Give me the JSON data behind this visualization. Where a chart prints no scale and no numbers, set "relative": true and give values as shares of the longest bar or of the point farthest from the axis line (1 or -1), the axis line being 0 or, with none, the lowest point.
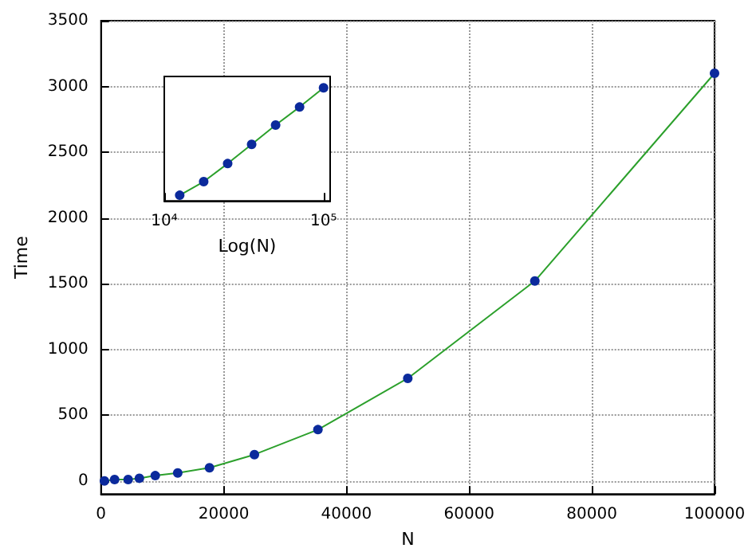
{
  "chart_data": [
    {
      "type": "line",
      "xlabel": "N",
      "ylabel": "Time",
      "xlim": [
        0,
        100000
      ],
      "xticks": [
        0,
        20000,
        40000,
        60000,
        80000,
        100000
      ],
      "ylim": [
        -100,
        3500
      ],
      "yticks": [
        0,
        500,
        1000,
        1500,
        2000,
        2500,
        3000,
        3500
      ],
      "grid": true,
      "marker": "circle",
      "line_style": "solid",
      "series": [
        {
          "color": "#2ca02c",
          "x": [
            550,
            2210,
            4419,
            6250,
            8839,
            12500,
            17678,
            25000,
            35355,
            50000,
            70711,
            100000
          ],
          "values": [
            0,
            10,
            10,
            20,
            40,
            60,
            100,
            200,
            390,
            780,
            1520,
            3100
          ],
          "colors": [
            "#0b2a9c",
            "#0b2a9c",
            "#0b2a9c",
            "#0b2a9c",
            "#0b2a9c",
            "#0b2a9c",
            "#0b2a9c",
            "#0b2a9c",
            "#0b2a9c",
            "#0b2a9c",
            "#0b2a9c",
            "#0b2a9c"
          ]
        }
      ]
    },
    {
      "type": "line",
      "xlabel": "Log(N)",
      "log": "x",
      "relative": true,
      "xlim": [
        10000,
        110000
      ],
      "xticks": [
        {
          "value": 10000,
          "label": "10⁴"
        },
        {
          "value": 100000,
          "label": "10⁵"
        }
      ],
      "tick_labels": "x",
      "marker": "circle",
      "line_style": "solid",
      "series": [
        {
          "color": "#2ca02c",
          "x": [
            12500,
            17678,
            25000,
            35355,
            50000,
            70711,
            100000
          ],
          "values": [
            0.05,
            0.17,
            0.33,
            0.5,
            0.67,
            0.83,
            1
          ],
          "colors": [
            "#0b2a9c",
            "#0b2a9c",
            "#0b2a9c",
            "#0b2a9c",
            "#0b2a9c",
            "#0b2a9c",
            "#0b2a9c"
          ]
        }
      ]
    }
  ]
}
